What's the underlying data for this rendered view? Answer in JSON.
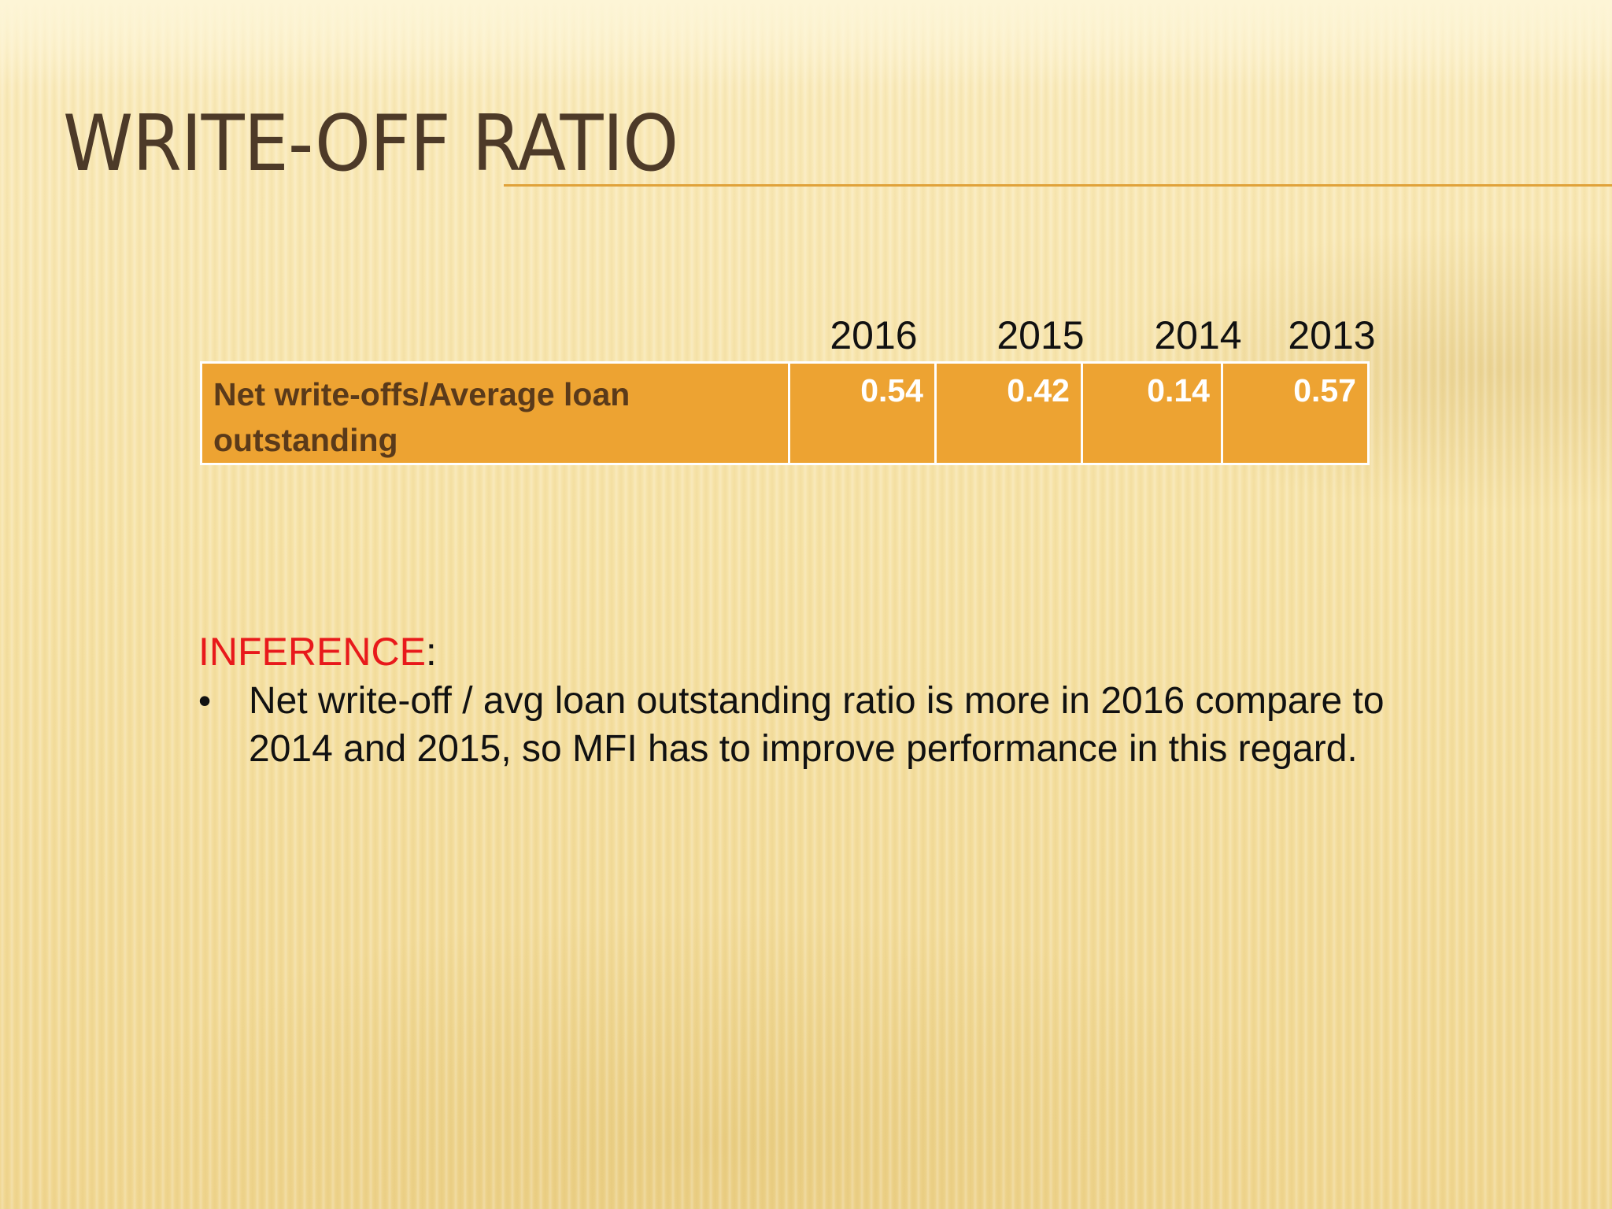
{
  "slide": {
    "title": "WRITE-OFF RATIO"
  },
  "table": {
    "years": [
      "2016",
      "2015",
      "2014",
      "2013"
    ],
    "row_label": "Net write-offs/Average loan outstanding",
    "values": [
      "0.54",
      "0.42",
      "0.14",
      "0.57"
    ]
  },
  "inference": {
    "heading": "INFERENCE",
    "colon": ":",
    "bullet_symbol": "•",
    "bullet_text": "Net write-off / avg loan outstanding ratio is more in 2016 compare to 2014 and 2015, so MFI has to improve performance in this regard."
  },
  "colors": {
    "title": "#4d3a28",
    "accent_orange": "#eda332",
    "heading_red": "#e8191b"
  }
}
